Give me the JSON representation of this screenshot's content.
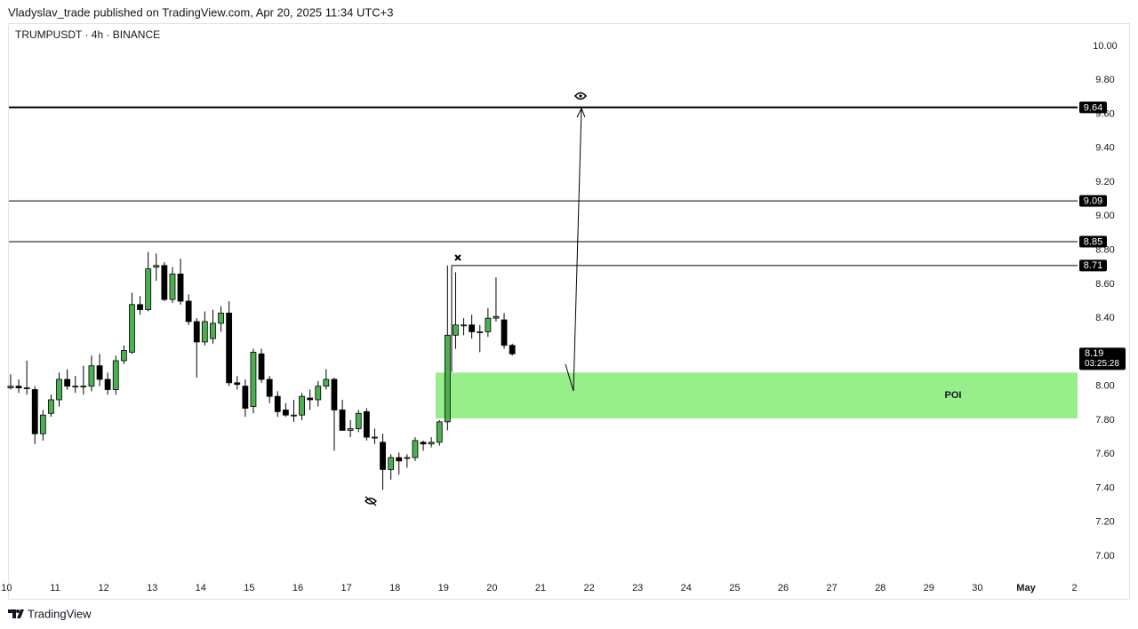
{
  "header": "Vladyslav_trade published on TradingView.com, Apr 20, 2025 11:34 UTC+3",
  "footer": "TradingView",
  "chart_data": {
    "type": "candlestick",
    "title": "TRUMPUSDT · 4h · BINANCE",
    "x": [
      10.083,
      10.25,
      10.417,
      10.583,
      10.75,
      10.917,
      11.083,
      11.25,
      11.417,
      11.583,
      11.75,
      11.917,
      12.083,
      12.25,
      12.417,
      12.583,
      12.75,
      12.917,
      13.083,
      13.25,
      13.417,
      13.583,
      13.75,
      13.917,
      14.083,
      14.25,
      14.417,
      14.583,
      14.75,
      14.917,
      15.083,
      15.25,
      15.417,
      15.583,
      15.75,
      15.917,
      16.083,
      16.25,
      16.417,
      16.583,
      16.75,
      16.917,
      17.083,
      17.25,
      17.417,
      17.583,
      17.75,
      17.917,
      18.083,
      18.25,
      18.417,
      18.583,
      18.75,
      18.917,
      19.083,
      19.25,
      19.417,
      19.583,
      19.75,
      19.917,
      20.083,
      20.25,
      20.417
    ],
    "open": [
      7.99,
      8.0,
      7.99,
      7.98,
      7.72,
      7.84,
      7.92,
      8.04,
      8.0,
      8.0,
      8.0,
      8.12,
      8.04,
      7.98,
      8.15,
      8.2,
      8.48,
      8.45,
      8.7,
      8.71,
      8.51,
      8.66,
      8.5,
      8.38,
      8.26,
      8.28,
      8.37,
      8.43,
      8.02,
      8.0,
      7.88,
      8.19,
      8.04,
      7.94,
      7.86,
      7.83,
      7.83,
      7.93,
      7.92,
      8.0,
      8.04,
      7.86,
      7.74,
      7.75,
      7.85,
      7.7,
      7.67,
      7.51,
      7.58,
      7.58,
      7.58,
      7.67,
      7.66,
      7.67,
      7.79,
      8.3,
      8.36,
      8.36,
      8.32,
      8.32,
      8.4,
      8.39,
      8.24
    ],
    "high": [
      8.07,
      8.04,
      8.15,
      8.0,
      7.86,
      7.95,
      8.08,
      8.1,
      8.06,
      8.12,
      8.18,
      8.19,
      8.08,
      8.18,
      8.24,
      8.55,
      8.53,
      8.79,
      8.78,
      8.73,
      8.7,
      8.75,
      8.54,
      8.4,
      8.44,
      8.45,
      8.47,
      8.5,
      8.06,
      8.04,
      8.22,
      8.22,
      8.06,
      7.97,
      7.9,
      7.92,
      7.96,
      7.98,
      8.03,
      8.1,
      8.05,
      7.92,
      7.8,
      7.86,
      7.87,
      7.75,
      7.72,
      7.6,
      7.61,
      7.6,
      7.7,
      7.68,
      7.7,
      7.8,
      8.71,
      8.67,
      8.4,
      8.42,
      8.36,
      8.46,
      8.64,
      8.43,
      8.25
    ],
    "low": [
      7.98,
      7.96,
      7.95,
      7.66,
      7.68,
      7.82,
      7.88,
      7.98,
      7.96,
      7.95,
      7.97,
      8.0,
      7.95,
      7.95,
      8.13,
      8.19,
      8.42,
      8.44,
      8.62,
      8.5,
      8.49,
      8.48,
      8.36,
      8.05,
      8.24,
      8.25,
      8.32,
      8.0,
      7.98,
      7.82,
      7.84,
      8.02,
      7.9,
      7.82,
      7.82,
      7.79,
      7.8,
      7.86,
      7.88,
      7.98,
      7.62,
      7.74,
      7.7,
      7.73,
      7.68,
      7.66,
      7.39,
      7.45,
      7.48,
      7.52,
      7.56,
      7.62,
      7.64,
      7.65,
      7.74,
      8.22,
      8.3,
      8.28,
      8.2,
      8.29,
      8.38,
      8.22,
      8.18
    ],
    "close": [
      8.0,
      7.99,
      7.99,
      7.72,
      7.83,
      7.92,
      8.04,
      8.0,
      8.0,
      8.0,
      8.12,
      8.04,
      7.98,
      8.15,
      8.21,
      8.48,
      8.45,
      8.69,
      8.71,
      8.51,
      8.66,
      8.5,
      8.38,
      8.26,
      8.38,
      8.37,
      8.43,
      8.02,
      8.01,
      7.87,
      8.2,
      8.04,
      7.94,
      7.85,
      7.83,
      7.83,
      7.94,
      7.92,
      8.0,
      8.04,
      7.86,
      7.74,
      7.75,
      7.84,
      7.7,
      7.7,
      7.51,
      7.58,
      7.56,
      7.58,
      7.68,
      7.66,
      7.67,
      7.79,
      8.3,
      8.36,
      8.36,
      8.32,
      8.32,
      8.4,
      8.41,
      8.24,
      8.19
    ],
    "up_color": "#4caf50",
    "down_color": "#000000",
    "xlim": [
      10,
      32
    ],
    "xticks": [
      10,
      11,
      12,
      13,
      14,
      15,
      16,
      17,
      18,
      19,
      20,
      21,
      22,
      23,
      24,
      25,
      26,
      27,
      28,
      29,
      30,
      {
        "value": 31,
        "label": "May"
      },
      {
        "value": 32,
        "label": "2"
      }
    ],
    "ylim": [
      7,
      10
    ],
    "yticks": [
      {
        "value": 7,
        "label": "7.00"
      },
      {
        "value": 7.2,
        "label": "7.20"
      },
      {
        "value": 7.4,
        "label": "7.40"
      },
      {
        "value": 7.6,
        "label": "7.60"
      },
      {
        "value": 7.8,
        "label": "7.80"
      },
      {
        "value": 8,
        "label": "8.00"
      },
      {
        "value": 8.2,
        "label": "8.20"
      },
      {
        "value": 8.4,
        "label": "8.40"
      },
      {
        "value": 8.6,
        "label": "8.60"
      },
      {
        "value": 8.8,
        "label": "8.80"
      },
      {
        "value": 9,
        "label": "9.00"
      },
      {
        "value": 9.2,
        "label": "9.20"
      },
      {
        "value": 9.4,
        "label": "9.40"
      },
      {
        "value": 9.6,
        "label": "9.60"
      },
      {
        "value": 9.8,
        "label": "9.80"
      },
      {
        "value": 10,
        "label": "10.00"
      }
    ],
    "levels": [
      9.64,
      9.09,
      8.85,
      8.71
    ],
    "last_price": 8.19,
    "countdown": "03:25:28",
    "zone": {
      "label": "POI",
      "low": 7.81,
      "high": 8.08,
      "color": "#98ee8b"
    },
    "grid": false
  }
}
